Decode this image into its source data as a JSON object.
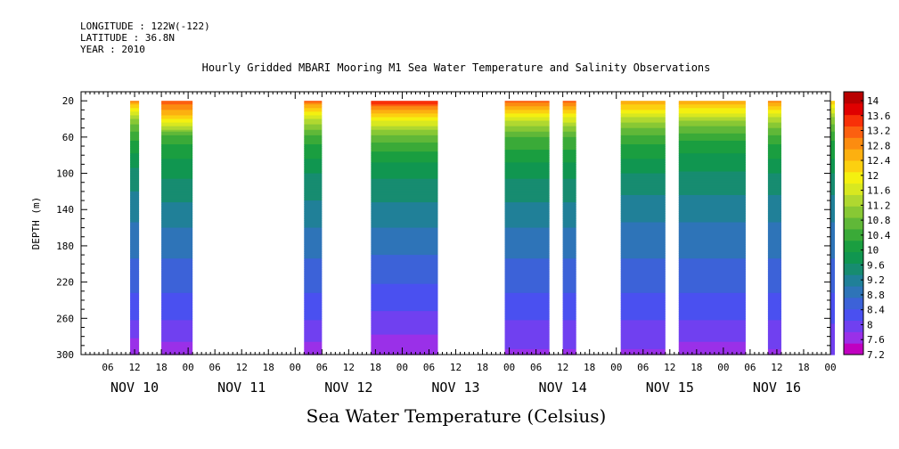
{
  "header": {
    "longitude": "LONGITUDE : 122W(-122)",
    "latitude": "LATITUDE : 36.8N",
    "year": "YEAR : 2010"
  },
  "chart_data": {
    "type": "heatmap",
    "title": "Hourly Gridded MBARI Mooring M1 Sea Water Temperature and Salinity Observations",
    "xlabel": "",
    "ylabel": "DEPTH (m)",
    "colorbar_label": "Sea Water Temperature (Celsius)",
    "x_range_hours": [
      0,
      168
    ],
    "y_range": [
      10,
      300
    ],
    "y_ticks": [
      20,
      60,
      100,
      140,
      180,
      220,
      260,
      300
    ],
    "x_hour_labels": [
      "06",
      "12",
      "18",
      "00",
      "06",
      "12",
      "18",
      "00",
      "06",
      "12",
      "18",
      "00",
      "06",
      "12",
      "18",
      "00",
      "06",
      "12",
      "18",
      "00",
      "06",
      "12",
      "18",
      "00",
      "06",
      "12",
      "18",
      "00"
    ],
    "day_labels": [
      "NOV 10",
      "NOV 11",
      "NOV 12",
      "NOV 13",
      "NOV 14",
      "NOV 15",
      "NOV 16"
    ],
    "colorbar_levels": [
      "14",
      "13.6",
      "13.2",
      "12.8",
      "12.4",
      "12",
      "11.6",
      "11.2",
      "10.8",
      "10.4",
      "10",
      "9.6",
      "9.2",
      "8.8",
      "8.4",
      "8",
      "7.6",
      "7.2"
    ],
    "color_range": [
      7.2,
      14.0
    ],
    "colors": [
      "#c000c0",
      "#9a30e8",
      "#7040f0",
      "#4a50f0",
      "#3c62d8",
      "#2e74b8",
      "#208098",
      "#178c70",
      "#109650",
      "#1a9e40",
      "#3aaa38",
      "#60b838",
      "#88c834",
      "#b0d830",
      "#d8e820",
      "#f4f010",
      "#fcd010",
      "#fcb010",
      "#fc8c10",
      "#fc6010",
      "#f83008",
      "#e00000",
      "#b80000"
    ],
    "segments": [
      {
        "start": "NOV 10 11:00",
        "end": "NOV 10 13:00",
        "surface_temp": 12.7,
        "depth_profile": [
          [
            20,
            12.7
          ],
          [
            40,
            11.0
          ],
          [
            60,
            10.2
          ],
          [
            80,
            9.8
          ],
          [
            100,
            9.4
          ],
          [
            140,
            9.0
          ],
          [
            180,
            8.7
          ],
          [
            220,
            8.4
          ],
          [
            260,
            8.0
          ],
          [
            300,
            7.4
          ]
        ]
      },
      {
        "start": "NOV 10 18:00",
        "end": "NOV 11 01:00",
        "surface_temp": 13.2,
        "depth_profile": [
          [
            20,
            13.2
          ],
          [
            40,
            12.0
          ],
          [
            60,
            10.3
          ],
          [
            80,
            9.9
          ],
          [
            100,
            9.6
          ],
          [
            140,
            9.1
          ],
          [
            180,
            8.7
          ],
          [
            220,
            8.4
          ],
          [
            260,
            8.0
          ],
          [
            300,
            7.5
          ]
        ]
      },
      {
        "start": "NOV 12 02:00",
        "end": "NOV 12 06:00",
        "surface_temp": 13.0,
        "depth_profile": [
          [
            20,
            13.0
          ],
          [
            40,
            11.4
          ],
          [
            60,
            10.3
          ],
          [
            80,
            9.9
          ],
          [
            100,
            9.5
          ],
          [
            140,
            9.1
          ],
          [
            180,
            8.7
          ],
          [
            220,
            8.4
          ],
          [
            260,
            8.0
          ],
          [
            300,
            7.5
          ]
        ]
      },
      {
        "start": "NOV 12 17:00",
        "end": "NOV 13 08:00",
        "surface_temp": 13.5,
        "depth_profile": [
          [
            20,
            13.5
          ],
          [
            40,
            11.8
          ],
          [
            60,
            10.6
          ],
          [
            80,
            10.0
          ],
          [
            100,
            9.6
          ],
          [
            140,
            9.1
          ],
          [
            180,
            8.7
          ],
          [
            220,
            8.3
          ],
          [
            260,
            7.9
          ],
          [
            300,
            7.4
          ]
        ]
      },
      {
        "start": "NOV 13 23:00",
        "end": "NOV 14 09:00",
        "surface_temp": 13.0,
        "depth_profile": [
          [
            20,
            13.0
          ],
          [
            40,
            11.5
          ],
          [
            60,
            10.4
          ],
          [
            80,
            10.0
          ],
          [
            100,
            9.6
          ],
          [
            140,
            9.1
          ],
          [
            180,
            8.7
          ],
          [
            220,
            8.4
          ],
          [
            260,
            8.0
          ],
          [
            300,
            7.6
          ]
        ]
      },
      {
        "start": "NOV 14 12:00",
        "end": "NOV 14 15:00",
        "surface_temp": 13.0,
        "depth_profile": [
          [
            20,
            13.0
          ],
          [
            40,
            11.6
          ],
          [
            60,
            10.4
          ],
          [
            80,
            10.0
          ],
          [
            100,
            9.6
          ],
          [
            140,
            9.1
          ],
          [
            180,
            8.7
          ],
          [
            220,
            8.4
          ],
          [
            260,
            8.0
          ],
          [
            300,
            7.6
          ]
        ]
      },
      {
        "start": "NOV 15 01:00",
        "end": "NOV 15 11:00",
        "surface_temp": 12.6,
        "depth_profile": [
          [
            20,
            12.6
          ],
          [
            40,
            11.3
          ],
          [
            60,
            10.3
          ],
          [
            80,
            9.9
          ],
          [
            100,
            9.5
          ],
          [
            140,
            9.0
          ],
          [
            180,
            8.7
          ],
          [
            220,
            8.4
          ],
          [
            260,
            8.0
          ],
          [
            300,
            7.6
          ]
        ]
      },
      {
        "start": "NOV 15 14:00",
        "end": "NOV 16 05:00",
        "surface_temp": 12.6,
        "depth_profile": [
          [
            20,
            12.6
          ],
          [
            40,
            11.2
          ],
          [
            60,
            10.2
          ],
          [
            80,
            9.8
          ],
          [
            100,
            9.5
          ],
          [
            140,
            9.0
          ],
          [
            180,
            8.7
          ],
          [
            220,
            8.4
          ],
          [
            260,
            8.0
          ],
          [
            300,
            7.5
          ]
        ]
      },
      {
        "start": "NOV 16 10:00",
        "end": "NOV 16 13:00",
        "surface_temp": 12.7,
        "depth_profile": [
          [
            20,
            12.7
          ],
          [
            40,
            11.3
          ],
          [
            60,
            10.3
          ],
          [
            80,
            9.9
          ],
          [
            100,
            9.5
          ],
          [
            140,
            9.0
          ],
          [
            180,
            8.7
          ],
          [
            220,
            8.4
          ],
          [
            260,
            8.0
          ],
          [
            300,
            7.6
          ]
        ]
      },
      {
        "start": "NOV 17 00:00",
        "end": "NOV 17 01:00",
        "surface_temp": 12.2,
        "depth_profile": [
          [
            20,
            12.2
          ],
          [
            40,
            11.0
          ],
          [
            60,
            10.2
          ],
          [
            80,
            9.9
          ],
          [
            100,
            9.5
          ],
          [
            140,
            9.0
          ],
          [
            180,
            8.7
          ],
          [
            220,
            8.4
          ],
          [
            260,
            8.0
          ],
          [
            300,
            7.8
          ]
        ]
      }
    ]
  }
}
